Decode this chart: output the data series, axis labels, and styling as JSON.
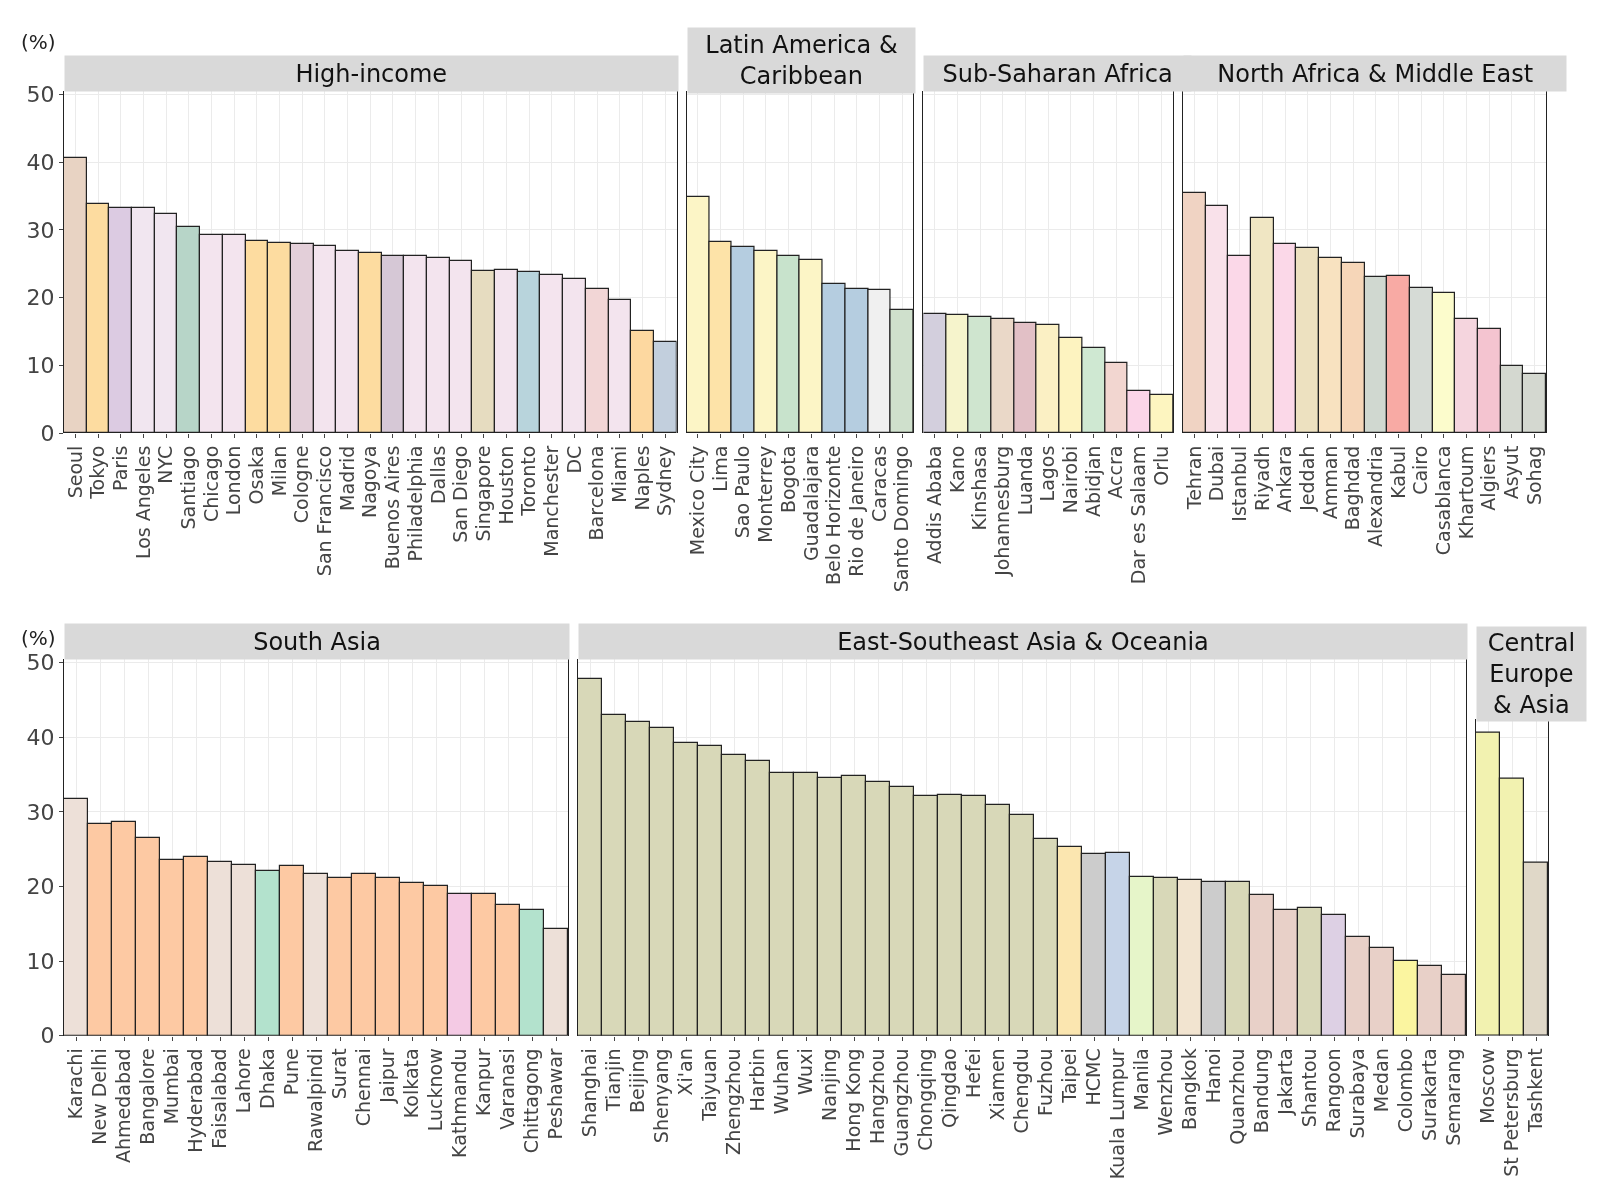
{
  "chart_data": [
    {
      "type": "bar",
      "title": "High-income",
      "ylabel": "(%)",
      "grid": true,
      "ylim": [
        0,
        50.5
      ],
      "yticks": [
        0,
        10,
        20,
        30,
        40,
        50
      ],
      "categories": [
        "Seoul",
        "Tokyo",
        "Paris",
        "Los Angeles",
        "NYC",
        "Santiago",
        "Chicago",
        "London",
        "Osaka",
        "Milan",
        "Cologne",
        "San Francisco",
        "Madrid",
        "Nagoya",
        "Buenos Aires",
        "Philadelphia",
        "Dallas",
        "San Diego",
        "Singapore",
        "Houston",
        "Toronto",
        "Manchester",
        "DC",
        "Barcelona",
        "Miami",
        "Naples",
        "Sydney"
      ],
      "values": [
        40.6,
        33.8,
        33.2,
        33.2,
        32.4,
        30.4,
        29.3,
        29.2,
        28.3,
        28.0,
        27.9,
        27.6,
        26.9,
        26.6,
        26.2,
        26.2,
        25.8,
        25.4,
        23.9,
        24.1,
        23.8,
        23.4,
        22.7,
        21.3,
        19.7,
        15.1,
        13.4
      ],
      "colors": [
        "#e8d3c3",
        "#fddca0",
        "#dccbe2",
        "#f1e6f0",
        "#f1e6f0",
        "#b7d5c8",
        "#f3e4ee",
        "#f3e4ee",
        "#fddca0",
        "#fddca0",
        "#e3cfd9",
        "#f3e4ee",
        "#f3e4ee",
        "#fddca0",
        "#d6c8d6",
        "#f3e4ee",
        "#f3e4ee",
        "#f3e4ee",
        "#e6dcc0",
        "#f3e4ee",
        "#b8d4dc",
        "#f4e4ee",
        "#f3e4ee",
        "#f2d6d6",
        "#f3e4ee",
        "#fdd8a0",
        "#c2cfdd"
      ]
    },
    {
      "type": "bar",
      "title": "Latin America & Caribbean",
      "grid": true,
      "tick_labels": "x",
      "ylim": [
        0,
        50.5
      ],
      "yticks": [
        0,
        10,
        20,
        30,
        40,
        50
      ],
      "categories": [
        "Mexico City",
        "Lima",
        "Sao Paulo",
        "Monterrey",
        "Bogota",
        "Guadalajara",
        "Belo Horizonte",
        "Rio de Janeiro",
        "Caracas",
        "Santo Domingo"
      ],
      "values": [
        34.9,
        28.2,
        27.5,
        26.9,
        26.1,
        25.5,
        22.0,
        21.3,
        21.1,
        18.2
      ],
      "colors": [
        "#fcf5c6",
        "#fde3a8",
        "#b5cde0",
        "#fcf5c6",
        "#c8e3cc",
        "#fcf5c6",
        "#b5cde0",
        "#b5cde0",
        "#f0f0f0",
        "#cfe0cc"
      ]
    },
    {
      "type": "bar",
      "title": "Sub-Saharan Africa",
      "grid": true,
      "tick_labels": "x",
      "ylim": [
        0,
        50.5
      ],
      "yticks": [
        0,
        10,
        20,
        30,
        40,
        50
      ],
      "categories": [
        "Addis Ababa",
        "Kano",
        "Kinshasa",
        "Johannesburg",
        "Luanda",
        "Lagos",
        "Nairobi",
        "Abidjan",
        "Accra",
        "Dar es Salaam",
        "Orlu"
      ],
      "values": [
        17.6,
        17.5,
        17.2,
        16.8,
        16.2,
        15.9,
        14.1,
        12.5,
        10.4,
        6.2,
        5.6
      ],
      "colors": [
        "#d3cfdd",
        "#f6f4cc",
        "#cfe5cf",
        "#ead8c8",
        "#e2c0c6",
        "#fbf0c4",
        "#fdf3c0",
        "#cfe8d2",
        "#f2d6d0",
        "#fbd5e8",
        "#fdf5c0"
      ]
    },
    {
      "type": "bar",
      "title": "North Africa & Middle East",
      "grid": true,
      "tick_labels": "x",
      "ylim": [
        0,
        50.5
      ],
      "yticks": [
        0,
        10,
        20,
        30,
        40,
        50
      ],
      "categories": [
        "Tehran",
        "Dubai",
        "Istanbul",
        "Riyadh",
        "Ankara",
        "Jeddah",
        "Amman",
        "Baghdad",
        "Alexandria",
        "Kabul",
        "Cairo",
        "Casablanca",
        "Khartoum",
        "Algiers",
        "Asyut",
        "Sohag"
      ],
      "values": [
        35.4,
        33.5,
        26.1,
        31.7,
        27.9,
        27.3,
        25.9,
        25.1,
        23.0,
        23.2,
        21.4,
        20.7,
        16.9,
        15.4,
        9.9,
        8.7
      ],
      "colors": [
        "#f0d3c3",
        "#f9e1ea",
        "#fbd8e8",
        "#f0e6c3",
        "#fbd8e8",
        "#ede1c0",
        "#f8e2c0",
        "#f6d6b8",
        "#d0d8d0",
        "#f8aaa4",
        "#d6dbd6",
        "#fcfccc",
        "#f5d5de",
        "#f4c4d0",
        "#d4d8d0",
        "#d4d8d0"
      ]
    },
    {
      "type": "bar",
      "title": "South Asia",
      "ylabel": "(%)",
      "grid": true,
      "ylim": [
        0,
        50.5
      ],
      "yticks": [
        0,
        10,
        20,
        30,
        40,
        50
      ],
      "categories": [
        "Karachi",
        "New Delhi",
        "Ahmedabad",
        "Bangalore",
        "Mumbai",
        "Hyderabad",
        "Faisalabad",
        "Lahore",
        "Dhaka",
        "Pune",
        "Rawalpindi",
        "Surat",
        "Chennai",
        "Jaipur",
        "Kolkata",
        "Lucknow",
        "Kathmandu",
        "Kanpur",
        "Varanasi",
        "Chittagong",
        "Peshawar"
      ],
      "values": [
        31.7,
        28.4,
        28.7,
        26.5,
        23.6,
        23.9,
        23.3,
        22.9,
        22.1,
        22.8,
        21.7,
        21.2,
        21.7,
        21.2,
        20.5,
        20.1,
        19.0,
        19.0,
        17.5,
        16.8,
        14.3
      ],
      "colors": [
        "#ede0d8",
        "#fdc9a3",
        "#fdc9a3",
        "#fdc9a3",
        "#fdc9a3",
        "#fdc9a3",
        "#ede0d8",
        "#ede0d8",
        "#b3e2cd",
        "#fdc9a3",
        "#ede0d8",
        "#fdc9a3",
        "#fdc9a3",
        "#fdc9a3",
        "#fdc9a3",
        "#fdc9a3",
        "#f4cae4",
        "#fdc9a3",
        "#fdc9a3",
        "#b3e2cd",
        "#ede0d8"
      ]
    },
    {
      "type": "bar",
      "title": "East-Southeast Asia & Oceania",
      "grid": true,
      "tick_labels": "x",
      "ylim": [
        0,
        50.5
      ],
      "yticks": [
        0,
        10,
        20,
        30,
        40,
        50
      ],
      "categories": [
        "Shanghai",
        "Tianjin",
        "Beijing",
        "Shenyang",
        "Xi'an",
        "Taiyuan",
        "Zhengzhou",
        "Harbin",
        "Wuhan",
        "Wuxi",
        "Nanjing",
        "Hong Kong",
        "Hangzhou",
        "Guangzhou",
        "Chongqing",
        "Qingdao",
        "Hefei",
        "Xiamen",
        "Chengdu",
        "Fuzhou",
        "Taipei",
        "HCMC",
        "Kuala Lumpur",
        "Manila",
        "Wenzhou",
        "Bangkok",
        "Hanoi",
        "Quanzhou",
        "Bandung",
        "Jakarta",
        "Shantou",
        "Rangoon",
        "Surabaya",
        "Medan",
        "Colombo",
        "Surakarta",
        "Semarang"
      ],
      "values": [
        47.8,
        43.0,
        42.0,
        41.2,
        39.2,
        38.8,
        37.6,
        36.8,
        35.2,
        35.2,
        34.6,
        34.8,
        34.0,
        33.4,
        32.1,
        32.3,
        32.1,
        30.9,
        29.6,
        26.4,
        25.3,
        24.4,
        24.5,
        21.3,
        21.2,
        20.9,
        20.6,
        20.6,
        18.9,
        16.8,
        17.1,
        16.2,
        13.3,
        11.7,
        10.0,
        9.4,
        8.1
      ],
      "colors": [
        "#d8d8b8",
        "#d8d8b8",
        "#d8d8b8",
        "#d8d8b8",
        "#d8d8b8",
        "#d8d8b8",
        "#d8d8b8",
        "#d8d8b8",
        "#d8d8b8",
        "#d8d8b8",
        "#d8d8b8",
        "#d8d8b8",
        "#d8d8b8",
        "#d8d8b8",
        "#d8d8b8",
        "#d8d8b8",
        "#d8d8b8",
        "#d8d8b8",
        "#d8d8b8",
        "#d8d8b8",
        "#fbe6b0",
        "#cccccc",
        "#c6d4e8",
        "#e6f5c9",
        "#d8d8b8",
        "#f2e4d0",
        "#cccccc",
        "#d8d8b8",
        "#e8d0c8",
        "#e8d0c8",
        "#d8d8b8",
        "#ddd0e4",
        "#e8d0c8",
        "#e8d0c8",
        "#fbf5a0",
        "#e8d0c8",
        "#e8d0c8"
      ]
    },
    {
      "type": "bar",
      "title": "Central Europe & Asia",
      "grid": true,
      "tick_labels": "x",
      "ylim": [
        0,
        42.5
      ],
      "yticks": [
        0,
        10,
        20,
        30,
        40
      ],
      "categories": [
        "Moscow",
        "St Petersburg",
        "Tashkent"
      ],
      "values": [
        40.6,
        34.4,
        23.2
      ],
      "colors": [
        "#f2f2b0",
        "#f2f2b0",
        "#e0d8c8"
      ]
    }
  ]
}
